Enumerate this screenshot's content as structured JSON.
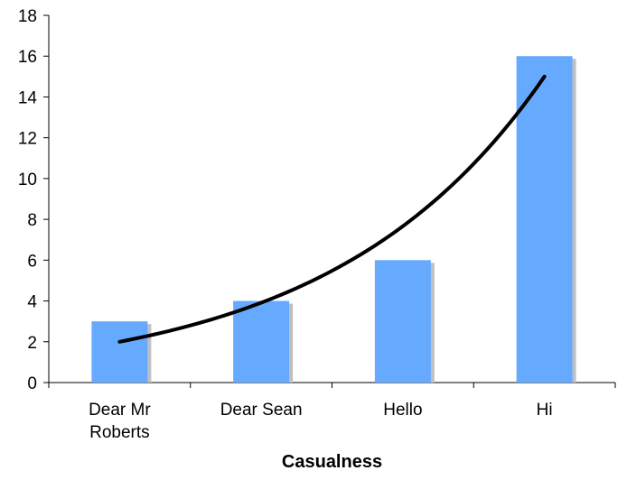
{
  "chart_data": {
    "type": "bar",
    "title": "",
    "xlabel": "Casualness",
    "ylabel": "",
    "categories": [
      "Dear Mr Roberts",
      "Dear Sean",
      "Hello",
      "Hi"
    ],
    "category_lines": [
      [
        "Dear Mr",
        "Roberts"
      ],
      [
        "Dear Sean"
      ],
      [
        "Hello"
      ],
      [
        "Hi"
      ]
    ],
    "values": [
      3,
      4,
      6,
      16
    ],
    "ylim": [
      0,
      18
    ],
    "yticks": [
      0,
      2,
      4,
      6,
      8,
      10,
      12,
      14,
      16,
      18
    ],
    "grid": false,
    "legend": "none",
    "bar_color": "#66aaff",
    "bar_shadow_color": "#c0c0c0",
    "trendline": {
      "type": "exponential",
      "color": "#000000",
      "points": [
        {
          "x": "Dear Mr Roberts",
          "y": 2.0
        },
        {
          "x": "Dear Sean",
          "y": 3.9
        },
        {
          "x": "Hello",
          "y": 7.0
        },
        {
          "x": "Hi",
          "y": 15.0
        }
      ]
    }
  }
}
